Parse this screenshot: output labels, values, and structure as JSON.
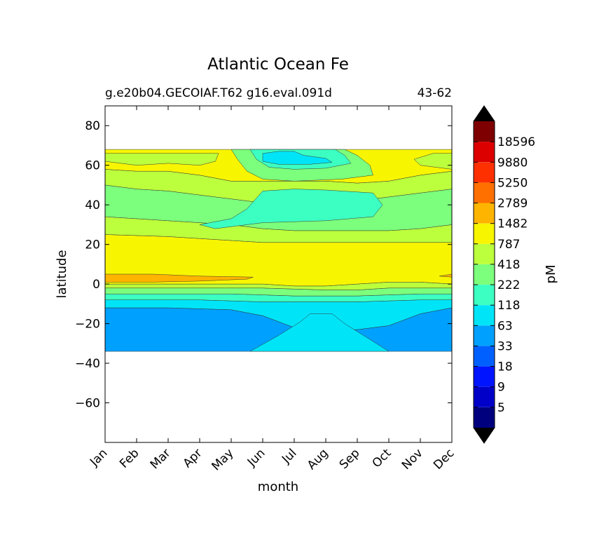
{
  "chart_data": {
    "type": "heatmap",
    "title": "Atlantic Ocean Fe",
    "subtitle_left": "g.e20b04.GECOIAF.T62 g16.eval.091d",
    "subtitle_right": "43-62",
    "xlabel": "month",
    "ylabel": "latitude",
    "x_categories": [
      "Jan",
      "Feb",
      "Mar",
      "Apr",
      "May",
      "Jun",
      "Jul",
      "Aug",
      "Sep",
      "Oct",
      "Nov",
      "Dec"
    ],
    "ylim": [
      -80,
      90
    ],
    "yticks": [
      80,
      60,
      40,
      20,
      0,
      -20,
      -40,
      -60
    ],
    "data_lat_range": [
      -34,
      68
    ],
    "grid": false,
    "colorbar": {
      "label": "pM",
      "placement": "right",
      "levels": [
        "5",
        "9",
        "18",
        "33",
        "63",
        "118",
        "222",
        "418",
        "787",
        "1482",
        "2789",
        "5250",
        "9880",
        "18596"
      ],
      "colors": [
        "#00007f",
        "#0000c8",
        "#0014ff",
        "#0060ff",
        "#00a0ff",
        "#00e4f8",
        "#3cffc2",
        "#7cff7c",
        "#bcff3c",
        "#f8f500",
        "#ffb400",
        "#ff7000",
        "#ff3000",
        "#dc0000",
        "#7f0000"
      ],
      "extend_low_color": "#000000",
      "extend_high_color": "#000000"
    },
    "bands": [
      {
        "lat_min": -34,
        "lat_max": -12,
        "level": "33-63",
        "note": "centered Jan-May and Oct-Dec; 63-118 in Jun-Sep"
      },
      {
        "lat_min": -12,
        "lat_max": -8,
        "level": "63-118"
      },
      {
        "lat_min": -8,
        "lat_max": -2,
        "level": "118-222 / 222-418"
      },
      {
        "lat_min": -2,
        "lat_max": 20,
        "level": "787-1482",
        "note": "1482-2789 near 3N in Jan-May"
      },
      {
        "lat_min": 20,
        "lat_max": 33,
        "level": "418-787"
      },
      {
        "lat_min": 28,
        "lat_max": 50,
        "level": "222-418 / 118-222",
        "note": "118-222 core May-Sep"
      },
      {
        "lat_min": 50,
        "lat_max": 68,
        "level": "787-1482 / 418-787",
        "note": "63-118 patch near 62N in Jul"
      }
    ]
  }
}
